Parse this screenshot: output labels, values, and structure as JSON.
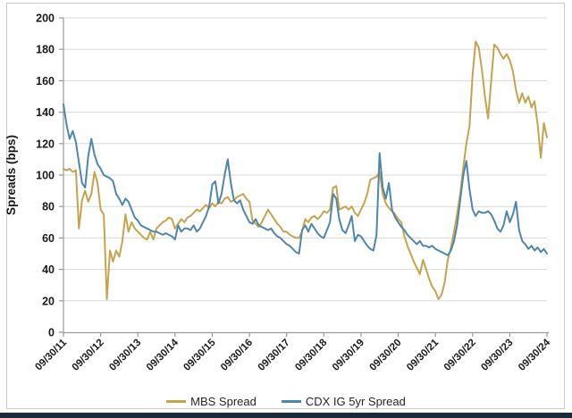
{
  "chart_data": {
    "type": "line",
    "title": "",
    "ylabel": "Spreads (bps)",
    "xlabel": "",
    "ylim": [
      0,
      200
    ],
    "y_ticks": [
      0,
      20,
      40,
      60,
      80,
      100,
      120,
      140,
      160,
      180,
      200
    ],
    "grid": true,
    "legend_position": "bottom",
    "x_tick_labels": [
      "09/30/11",
      "09/30/12",
      "09/30/13",
      "09/30/14",
      "09/30/15",
      "09/30/16",
      "09/30/17",
      "09/30/18",
      "09/30/19",
      "09/30/20",
      "09/30/21",
      "09/30/22",
      "09/30/23",
      "09/30/24"
    ],
    "x_frequency": "monthly",
    "series": [
      {
        "name": "MBS Spread",
        "color": "#c6a44e",
        "values": [
          104,
          103,
          104,
          102,
          103,
          66,
          84,
          90,
          83,
          88,
          102,
          95,
          78,
          75,
          21,
          52,
          45,
          52,
          48,
          58,
          75,
          64,
          70,
          66,
          64,
          62,
          60,
          59,
          64,
          59,
          66,
          68,
          70,
          71,
          73,
          72,
          66,
          69,
          72,
          70,
          73,
          74,
          76,
          78,
          77,
          79,
          81,
          79,
          82,
          80,
          83,
          82,
          85,
          86,
          83,
          84,
          86,
          87,
          88,
          85,
          83,
          71,
          69,
          67,
          70,
          74,
          78,
          75,
          72,
          69,
          67,
          64,
          64,
          62,
          61,
          60,
          60,
          64,
          72,
          70,
          73,
          74,
          72,
          74,
          77,
          76,
          78,
          92,
          93,
          78,
          79,
          80,
          78,
          80,
          76,
          74,
          78,
          82,
          88,
          97,
          98,
          99,
          102,
          88,
          82,
          79,
          77,
          75,
          72,
          70,
          61,
          55,
          50,
          45,
          41,
          37,
          46,
          40,
          34,
          29,
          26,
          21,
          24,
          32,
          46,
          54,
          64,
          75,
          88,
          105,
          120,
          131,
          164,
          185,
          181,
          167,
          150,
          136,
          160,
          183,
          181,
          177,
          174,
          177,
          173,
          166,
          154,
          146,
          152,
          146,
          150,
          143,
          147,
          132,
          111,
          133,
          124
        ]
      },
      {
        "name": "CDX IG 5yr Spread",
        "color": "#4e86ac",
        "values": [
          145,
          132,
          123,
          128,
          121,
          108,
          95,
          92,
          112,
          123,
          113,
          107,
          104,
          100,
          99,
          98,
          96,
          88,
          85,
          81,
          85,
          83,
          78,
          73,
          71,
          68,
          67,
          66,
          65,
          64,
          64,
          63,
          62,
          63,
          62,
          61,
          59,
          68,
          64,
          66,
          66,
          65,
          68,
          64,
          66,
          70,
          74,
          80,
          94,
          96,
          82,
          88,
          100,
          110,
          95,
          84,
          82,
          84,
          78,
          74,
          70,
          69,
          72,
          68,
          67,
          66,
          65,
          66,
          63,
          61,
          60,
          58,
          56,
          55,
          53,
          51,
          50,
          65,
          68,
          64,
          69,
          66,
          63,
          61,
          60,
          65,
          70,
          88,
          85,
          72,
          65,
          63,
          68,
          74,
          58,
          62,
          61,
          58,
          55,
          53,
          52,
          62,
          114,
          92,
          85,
          95,
          78,
          73,
          70,
          67,
          65,
          62,
          60,
          58,
          56,
          58,
          55,
          55,
          54,
          55,
          53,
          52,
          51,
          50,
          49,
          52,
          58,
          68,
          84,
          100,
          109,
          91,
          78,
          74,
          77,
          76,
          76,
          77,
          75,
          71,
          66,
          64,
          68,
          77,
          70,
          75,
          83,
          65,
          58,
          56,
          53,
          55,
          52,
          54,
          51,
          53,
          50
        ]
      }
    ]
  },
  "colors": {
    "gridline": "#d9d9d9",
    "axis": "#9a9a9a",
    "tick_label": "#1a1a1a",
    "frame_border": "#c9c9c9",
    "bottom_band": "#1b2a3a"
  }
}
